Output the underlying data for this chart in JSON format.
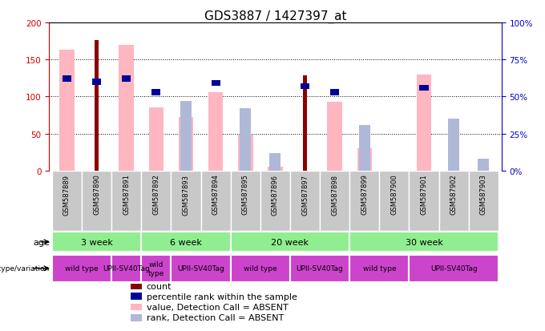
{
  "title": "GDS3887 / 1427397_at",
  "samples": [
    "GSM587889",
    "GSM587890",
    "GSM587891",
    "GSM587892",
    "GSM587893",
    "GSM587894",
    "GSM587895",
    "GSM587896",
    "GSM587897",
    "GSM587898",
    "GSM587899",
    "GSM587900",
    "GSM587901",
    "GSM587902",
    "GSM587903"
  ],
  "value_absent": [
    163,
    null,
    170,
    85,
    72,
    106,
    48,
    5,
    null,
    93,
    30,
    null,
    130,
    null,
    null
  ],
  "rank_absent_pct": [
    null,
    null,
    null,
    null,
    47,
    null,
    42,
    12,
    null,
    null,
    31,
    null,
    null,
    35,
    8
  ],
  "count": [
    null,
    176,
    null,
    null,
    null,
    null,
    null,
    null,
    128,
    null,
    null,
    null,
    null,
    null,
    null
  ],
  "percentile_pct": [
    62,
    60,
    62,
    53,
    null,
    59,
    null,
    null,
    57,
    53,
    null,
    null,
    56,
    null,
    null
  ],
  "ylim_left": [
    0,
    200
  ],
  "ylim_right": [
    0,
    100
  ],
  "yticks_left": [
    0,
    50,
    100,
    150,
    200
  ],
  "yticks_right": [
    0,
    25,
    50,
    75,
    100
  ],
  "ytick_labels_left": [
    "0",
    "50",
    "100",
    "150",
    "200"
  ],
  "ytick_labels_right": [
    "0%",
    "25%",
    "50%",
    "75%",
    "100%"
  ],
  "color_value_absent": "#ffb6c1",
  "color_rank_absent": "#b0b8d8",
  "color_count": "#8b0000",
  "color_percentile": "#000099",
  "left_axis_color": "#cc0000",
  "right_axis_color": "#0000cc",
  "age_groups": [
    {
      "label": "3 week",
      "start": 0,
      "end": 3
    },
    {
      "label": "6 week",
      "start": 3,
      "end": 6
    },
    {
      "label": "20 week",
      "start": 6,
      "end": 10
    },
    {
      "label": "30 week",
      "start": 10,
      "end": 15
    }
  ],
  "geno_groups": [
    {
      "label": "wild type",
      "start": 0,
      "end": 2
    },
    {
      "label": "UPII-SV40Tag",
      "start": 2,
      "end": 3
    },
    {
      "label": "wild\ntype",
      "start": 3,
      "end": 4
    },
    {
      "label": "UPII-SV40Tag",
      "start": 4,
      "end": 6
    },
    {
      "label": "wild type",
      "start": 6,
      "end": 8
    },
    {
      "label": "UPII-SV40Tag",
      "start": 8,
      "end": 10
    },
    {
      "label": "wild type",
      "start": 10,
      "end": 12
    },
    {
      "label": "UPII-SV40Tag",
      "start": 12,
      "end": 15
    }
  ],
  "age_color": "#90ee90",
  "geno_color": "#cc44cc",
  "sample_bg": "#c8c8c8"
}
